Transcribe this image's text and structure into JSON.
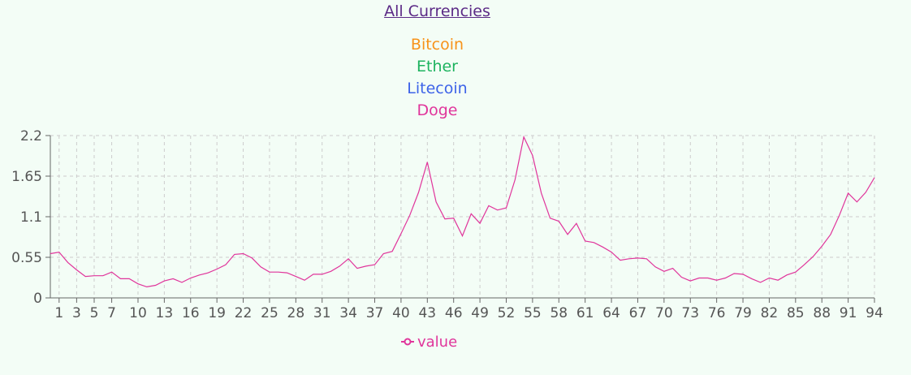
{
  "nav": {
    "all_currencies_label": "All Currencies"
  },
  "currencies": [
    {
      "label": "Bitcoin",
      "color": "#f7931a"
    },
    {
      "label": "Ether",
      "color": "#1db35f"
    },
    {
      "label": "Litecoin",
      "color": "#3d63e8"
    },
    {
      "label": "Doge",
      "color": "#e0359b"
    }
  ],
  "chart_data": {
    "type": "line",
    "title": "",
    "xlabel": "",
    "ylabel": "",
    "x_range": [
      0,
      94
    ],
    "ylim": [
      0,
      2.2
    ],
    "y_ticks": [
      0,
      0.55,
      1.1,
      1.65,
      2.2
    ],
    "y_tick_labels": [
      "0",
      "0.55",
      "1.1",
      "1.65",
      "2.2"
    ],
    "x_ticks": [
      1,
      3,
      5,
      7,
      10,
      13,
      16,
      19,
      22,
      25,
      28,
      31,
      34,
      37,
      40,
      43,
      46,
      49,
      52,
      55,
      58,
      61,
      64,
      67,
      70,
      73,
      76,
      79,
      82,
      85,
      88,
      91,
      94
    ],
    "grid": true,
    "legend_position": "bottom",
    "series": [
      {
        "name": "value",
        "color": "#e0359b",
        "x": [
          0,
          1,
          2,
          3,
          4,
          5,
          6,
          7,
          8,
          9,
          10,
          11,
          12,
          13,
          14,
          15,
          16,
          17,
          18,
          19,
          20,
          21,
          22,
          23,
          24,
          25,
          26,
          27,
          28,
          29,
          30,
          31,
          32,
          33,
          34,
          35,
          36,
          37,
          38,
          39,
          40,
          41,
          42,
          43,
          44,
          45,
          46,
          47,
          48,
          49,
          50,
          51,
          52,
          53,
          54,
          55,
          56,
          57,
          58,
          59,
          60,
          61,
          62,
          63,
          64,
          65,
          66,
          67,
          68,
          69,
          70,
          71,
          72,
          73,
          74,
          75,
          76,
          77,
          78,
          79,
          80,
          81,
          82,
          83,
          84,
          85,
          86,
          87,
          88,
          89,
          90,
          91,
          92,
          93,
          94
        ],
        "values": [
          0.6,
          0.62,
          0.48,
          0.38,
          0.29,
          0.3,
          0.3,
          0.35,
          0.26,
          0.26,
          0.19,
          0.15,
          0.17,
          0.23,
          0.26,
          0.21,
          0.27,
          0.31,
          0.34,
          0.39,
          0.45,
          0.59,
          0.6,
          0.54,
          0.42,
          0.35,
          0.35,
          0.34,
          0.29,
          0.24,
          0.32,
          0.32,
          0.36,
          0.43,
          0.53,
          0.4,
          0.43,
          0.45,
          0.6,
          0.63,
          0.87,
          1.12,
          1.43,
          1.84,
          1.3,
          1.07,
          1.08,
          0.84,
          1.14,
          1.01,
          1.25,
          1.19,
          1.22,
          1.6,
          2.18,
          1.93,
          1.42,
          1.08,
          1.04,
          0.86,
          1.01,
          0.77,
          0.75,
          0.69,
          0.62,
          0.51,
          0.53,
          0.54,
          0.53,
          0.42,
          0.36,
          0.4,
          0.28,
          0.23,
          0.27,
          0.27,
          0.24,
          0.27,
          0.33,
          0.32,
          0.26,
          0.21,
          0.27,
          0.24,
          0.31,
          0.35,
          0.45,
          0.56,
          0.7,
          0.86,
          1.12,
          1.42,
          1.3,
          1.43,
          1.63
        ]
      }
    ]
  }
}
